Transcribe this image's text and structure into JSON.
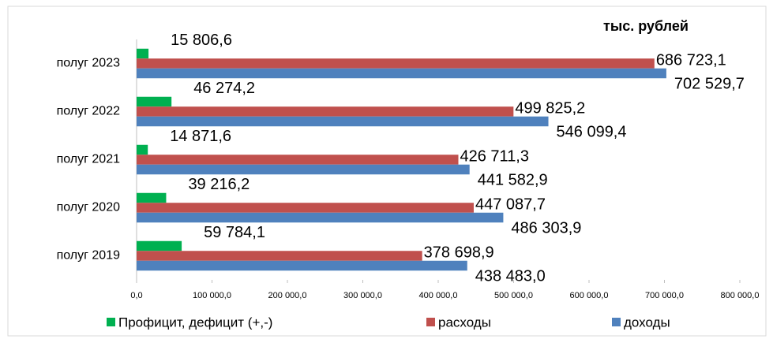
{
  "chart_data": {
    "type": "bar",
    "orientation": "horizontal",
    "annotation": "тыс. рублей",
    "categories": [
      "полуг 2019",
      "полуг 2020",
      "полуг 2021",
      "полуг 2022",
      "полуг 2023"
    ],
    "series": [
      {
        "name": "Профицит, дефицит (+,-)",
        "color": "#00b050",
        "values": [
          59784.1,
          39216.2,
          14871.6,
          46274.2,
          15806.6
        ],
        "value_labels": [
          "59 784,1",
          "39 216,2",
          "14 871,6",
          "46 274,2",
          "15 806,6"
        ]
      },
      {
        "name": "расходы",
        "color": "#c0504d",
        "values": [
          378698.9,
          447087.7,
          426711.3,
          499825.2,
          686723.1
        ],
        "value_labels": [
          "378 698,9",
          "447 087,7",
          "426 711,3",
          "499 825,2",
          "686 723,1"
        ]
      },
      {
        "name": "доходы",
        "color": "#4f81bd",
        "values": [
          438483.0,
          486303.9,
          441582.9,
          546099.4,
          702529.7
        ],
        "value_labels": [
          "438 483,0",
          "486 303,9",
          "441 582,9",
          "546 099,4",
          "702 529,7"
        ]
      }
    ],
    "xlim": [
      0,
      800000
    ],
    "xticks": [
      {
        "value": 0,
        "label": "0,0"
      },
      {
        "value": 100000,
        "label": "100 000,0"
      },
      {
        "value": 200000,
        "label": "200 000,0"
      },
      {
        "value": 300000,
        "label": "300 000,0"
      },
      {
        "value": 400000,
        "label": "400 000,0"
      },
      {
        "value": 500000,
        "label": "500 000,0"
      },
      {
        "value": 600000,
        "label": "600 000,0"
      },
      {
        "value": 700000,
        "label": "700 000,0"
      },
      {
        "value": 800000,
        "label": "800 000,0"
      }
    ],
    "legend": "bottom"
  }
}
